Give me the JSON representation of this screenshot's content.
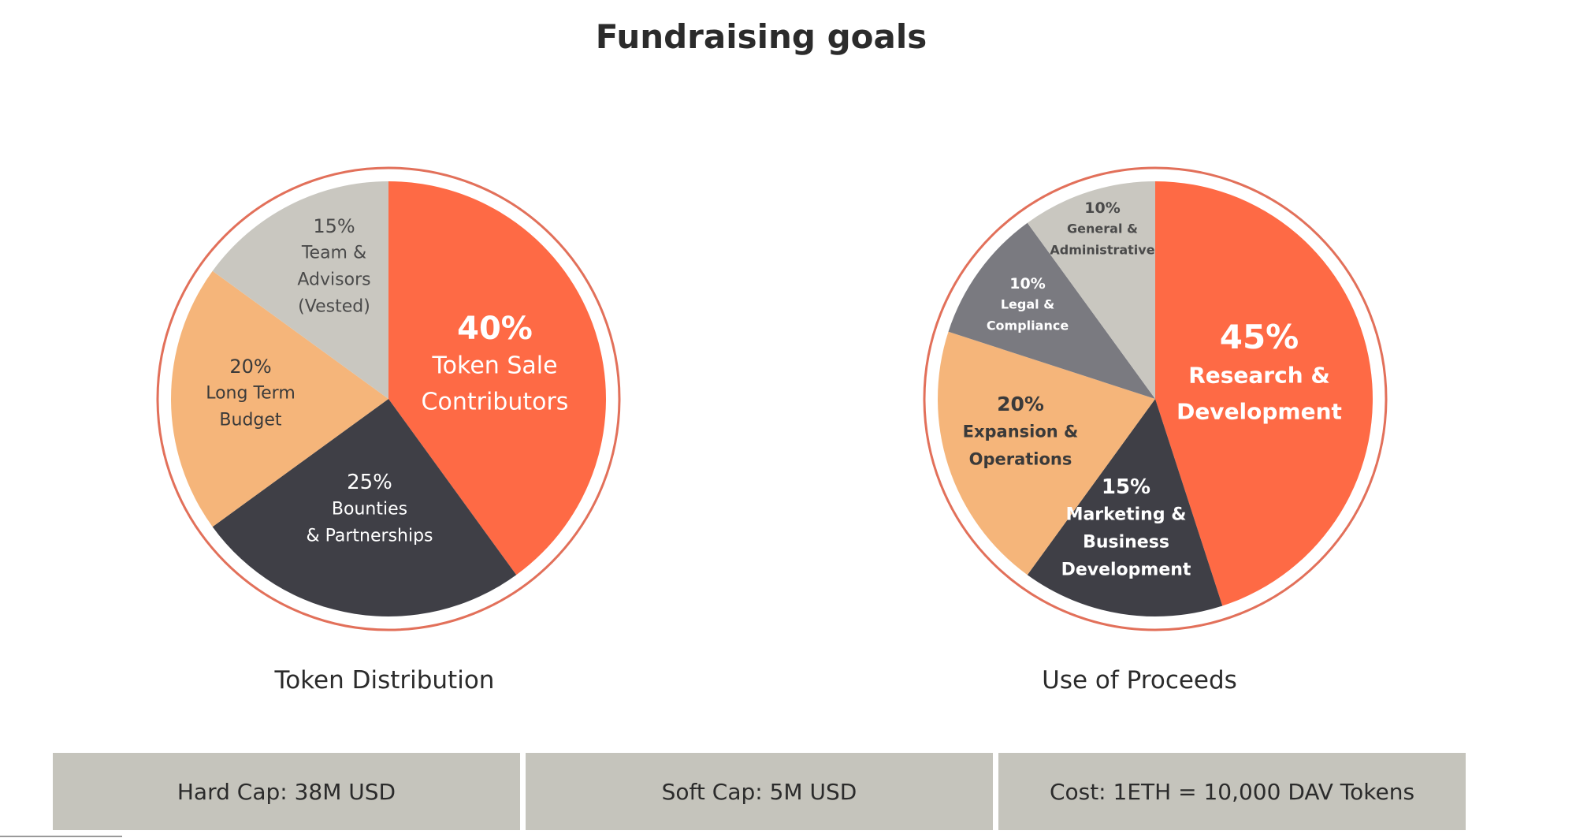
{
  "title": "Fundraising goals",
  "colors": {
    "orange": "#fe6a45",
    "dark": "#3f3f46",
    "peach": "#f5b57a",
    "light_gray": "#c9c7c0",
    "mid_gray": "#7a7a80",
    "ring": "#e2705a"
  },
  "chart_data": [
    {
      "type": "pie",
      "title": "Token Distribution",
      "slices": [
        {
          "label": "40%",
          "name": "Token Sale Contributors",
          "lines": [
            "Token Sale",
            "Contributors"
          ],
          "value": 40,
          "color": "#fe6a45",
          "text_color": "#ffffff"
        },
        {
          "label": "25%",
          "name": "Bounties & Partnerships",
          "lines": [
            "Bounties",
            "& Partnerships"
          ],
          "value": 25,
          "color": "#3f3f46",
          "text_color": "#ffffff"
        },
        {
          "label": "20%",
          "name": "Long Term Budget",
          "lines": [
            "Long Term",
            "Budget"
          ],
          "value": 20,
          "color": "#f5b57a",
          "text_color": "#3a3a3a"
        },
        {
          "label": "15%",
          "name": "Team & Advisors (Vested)",
          "lines": [
            "Team &",
            "Advisors",
            "(Vested)"
          ],
          "value": 15,
          "color": "#c9c7c0",
          "text_color": "#4a4a4a"
        }
      ]
    },
    {
      "type": "pie",
      "title": "Use of Proceeds",
      "slices": [
        {
          "label": "45%",
          "name": "Research & Development",
          "lines": [
            "Research &",
            "Development"
          ],
          "value": 45,
          "color": "#fe6a45",
          "text_color": "#ffffff"
        },
        {
          "label": "15%",
          "name": "Marketing & Business Development",
          "lines": [
            "Marketing &",
            "Business",
            "Development"
          ],
          "value": 15,
          "color": "#3f3f46",
          "text_color": "#ffffff"
        },
        {
          "label": "20%",
          "name": "Expansion & Operations",
          "lines": [
            "Expansion &",
            "Operations"
          ],
          "value": 20,
          "color": "#f5b57a",
          "text_color": "#3a3a3a"
        },
        {
          "label": "10%",
          "name": "Legal & Compliance",
          "lines": [
            "Legal &",
            "Compliance"
          ],
          "value": 10,
          "color": "#7a7a80",
          "text_color": "#ffffff"
        },
        {
          "label": "10%",
          "name": "General & Administrative",
          "lines": [
            "General &",
            "Administrative"
          ],
          "value": 10,
          "color": "#c9c7c0",
          "text_color": "#4a4a4a"
        }
      ]
    }
  ],
  "info": {
    "hard_cap": "Hard Cap: 38M USD",
    "soft_cap": "Soft Cap: 5M USD",
    "cost": "Cost: 1ETH = 10,000 DAV Tokens"
  }
}
